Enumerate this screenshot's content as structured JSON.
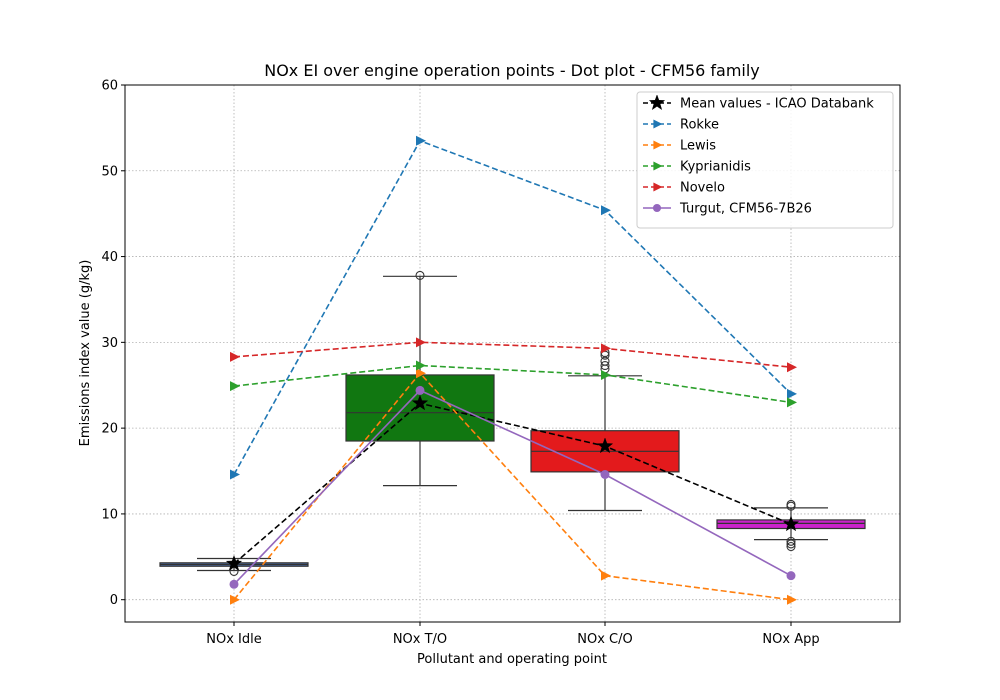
{
  "chart_data": {
    "type": "box",
    "title": "NOx EI over engine operation points - Dot plot - CFM56 family",
    "xlabel": "Pollutant and operating point",
    "ylabel": "Emissions index value (g/kg)",
    "categories": [
      "NOx Idle",
      "NOx T/O",
      "NOx C/O",
      "NOx App"
    ],
    "ylim": [
      -2.6,
      60
    ],
    "yticks": [
      0,
      10,
      20,
      30,
      40,
      50,
      60
    ],
    "grid": true,
    "legend_position": "top-right",
    "boxes": [
      {
        "category": "NOx Idle",
        "color": "#4c72b0",
        "whisker_low": 3.4,
        "q1": 3.9,
        "median": 4.1,
        "q3": 4.3,
        "whisker_high": 4.8,
        "outliers": [
          3.3
        ]
      },
      {
        "category": "NOx T/O",
        "color": "#117711",
        "whisker_low": 13.3,
        "q1": 18.5,
        "median": 21.8,
        "q3": 26.2,
        "whisker_high": 37.7,
        "outliers": [
          37.8
        ]
      },
      {
        "category": "NOx C/O",
        "color": "#e31a1c",
        "whisker_low": 10.4,
        "q1": 14.9,
        "median": 17.3,
        "q3": 19.7,
        "whisker_high": 26.1,
        "outliers": [
          26.9,
          27.3,
          27.8,
          28.5,
          28.8
        ]
      },
      {
        "category": "NOx App",
        "color": "#cc22cc",
        "whisker_low": 7.0,
        "q1": 8.3,
        "median": 8.9,
        "q3": 9.3,
        "whisker_high": 10.7,
        "outliers": [
          6.2,
          6.5,
          6.8,
          10.9,
          11.1
        ]
      }
    ],
    "series": [
      {
        "name": "Mean values - ICAO Databank",
        "color": "#000000",
        "dash": "dashed",
        "marker": "star",
        "values": [
          4.2,
          22.9,
          17.9,
          8.8
        ]
      },
      {
        "name": "Rokke",
        "color": "#1f77b4",
        "dash": "dashed",
        "marker": "triangle-right",
        "values": [
          14.6,
          53.5,
          45.4,
          24.0
        ]
      },
      {
        "name": "Lewis",
        "color": "#ff7f0e",
        "dash": "dashed",
        "marker": "triangle-right",
        "values": [
          0.0,
          26.4,
          2.8,
          0.0
        ]
      },
      {
        "name": "Kyprianidis",
        "color": "#2ca02c",
        "dash": "dashed",
        "marker": "triangle-right",
        "values": [
          24.9,
          27.3,
          26.2,
          23.0
        ]
      },
      {
        "name": "Novelo",
        "color": "#d62728",
        "dash": "dashed",
        "marker": "triangle-right",
        "values": [
          28.3,
          30.0,
          29.3,
          27.1
        ]
      },
      {
        "name": "Turgut, CFM56-7B26",
        "color": "#9467bd",
        "dash": "solid",
        "marker": "circle",
        "values": [
          1.8,
          24.4,
          14.6,
          2.8
        ]
      }
    ]
  }
}
